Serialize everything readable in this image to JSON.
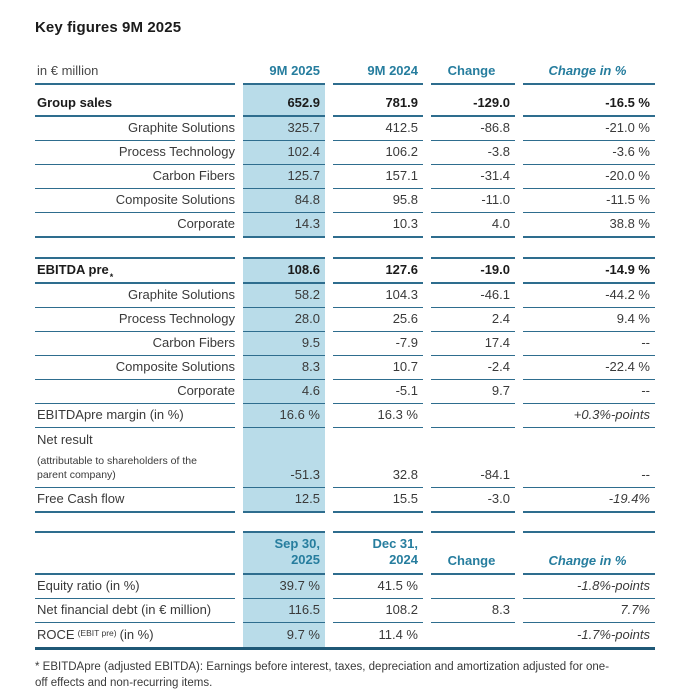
{
  "title": "Key figures 9M 2025",
  "colors": {
    "accent_teal": "#267d9e",
    "highlight_blue": "#b9dce9",
    "rule": "#2e6d8e",
    "rule_dark": "#1f5876",
    "text": "#3a3a3a"
  },
  "table1": {
    "unit_header": "in € million",
    "col_headers": [
      "9M 2025",
      "9M 2024",
      "Change",
      "Change in %"
    ],
    "rows": [
      {
        "label": "Group sales",
        "v": [
          "652.9",
          "781.9",
          "-129.0",
          "-16.5 %"
        ]
      },
      {
        "label": "Graphite Solutions",
        "v": [
          "325.7",
          "412.5",
          "-86.8",
          "-21.0 %"
        ]
      },
      {
        "label": "Process Technology",
        "v": [
          "102.4",
          "106.2",
          "-3.8",
          "-3.6 %"
        ]
      },
      {
        "label": "Carbon Fibers",
        "v": [
          "125.7",
          "157.1",
          "-31.4",
          "-20.0 %"
        ]
      },
      {
        "label": "Composite Solutions",
        "v": [
          "84.8",
          "95.8",
          "-11.0",
          "-11.5 %"
        ]
      },
      {
        "label": "Corporate",
        "v": [
          "14.3",
          "10.3",
          "4.0",
          "38.8 %"
        ]
      },
      {
        "label": "EBITDA pre",
        "sup": "*",
        "v": [
          "108.6",
          "127.6",
          "-19.0",
          "-14.9 %"
        ]
      },
      {
        "label": "Graphite Solutions",
        "v": [
          "58.2",
          "104.3",
          "-46.1",
          "-44.2 %"
        ]
      },
      {
        "label": "Process Technology",
        "v": [
          "28.0",
          "25.6",
          "2.4",
          "9.4 %"
        ]
      },
      {
        "label": "Carbon Fibers",
        "v": [
          "9.5",
          "-7.9",
          "17.4",
          "--"
        ]
      },
      {
        "label": "Composite Solutions",
        "v": [
          "8.3",
          "10.7",
          "-2.4",
          "-22.4 %"
        ]
      },
      {
        "label": "Corporate",
        "v": [
          "4.6",
          "-5.1",
          "9.7",
          "--"
        ]
      },
      {
        "label": "EBITDApre margin (in %)",
        "v": [
          "16.6 %",
          "16.3 %",
          "",
          "+0.3%-points"
        ]
      },
      {
        "label": "Net result",
        "label_small": "(attributable to shareholders of the parent company)",
        "v": [
          "-51.3",
          "32.8",
          "-84.1",
          "--"
        ]
      },
      {
        "label": "Free Cash flow",
        "v": [
          "12.5",
          "15.5",
          "-3.0",
          "-19.4%"
        ]
      }
    ]
  },
  "table2": {
    "col_headers": [
      {
        "line1": "Sep 30,",
        "line2": "2025"
      },
      {
        "line1": "Dec 31,",
        "line2": "2024"
      },
      {
        "label": "Change"
      },
      {
        "label": "Change in %"
      }
    ],
    "rows": [
      {
        "label": "Equity ratio (in %)",
        "v": [
          "39.7 %",
          "41.5 %",
          "",
          "-1.8%-points"
        ]
      },
      {
        "label": "Net financial debt (in € million)",
        "v": [
          "116.5",
          "108.2",
          "8.3",
          "7.7%"
        ]
      },
      {
        "label_pre": "ROCE",
        "label_sub": "(EBIT pre)",
        "label_post": "(in %)",
        "v": [
          "9.7 %",
          "11.4 %",
          "",
          "-1.7%-points"
        ]
      }
    ]
  },
  "footnote": "* EBITDApre (adjusted EBITDA): Earnings before interest, taxes, depreciation and amortization adjusted for one-off effects and non-recurring items."
}
